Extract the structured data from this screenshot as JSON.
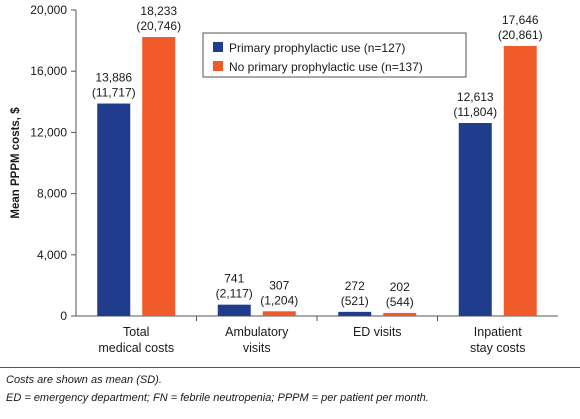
{
  "chart_data": {
    "type": "bar",
    "categories": [
      [
        "Total",
        "medical costs"
      ],
      [
        "Ambulatory",
        "visits"
      ],
      [
        "ED visits"
      ],
      [
        "Inpatient",
        "stay costs"
      ]
    ],
    "series": [
      {
        "name": "Primary prophylactic use (n=127)",
        "color": "#1f3d8c",
        "values": [
          13886,
          741,
          272,
          12613
        ],
        "sd": [
          11717,
          2117,
          521,
          11804
        ],
        "labels": [
          "13,886",
          "741",
          "272",
          "12,613"
        ],
        "sd_labels": [
          "(11,717)",
          "(2,117)",
          "(521)",
          "(11,804)"
        ]
      },
      {
        "name": "No primary prophylactic use (n=137)",
        "color": "#f05a28",
        "values": [
          18233,
          307,
          202,
          17646
        ],
        "sd": [
          20746,
          1204,
          544,
          20861
        ],
        "labels": [
          "18,233",
          "307",
          "202",
          "17,646"
        ],
        "sd_labels": [
          "(20,746)",
          "(1,204)",
          "(544)",
          "(20,861)"
        ]
      }
    ],
    "ylabel": "Mean PPPM costs, $",
    "ylim": [
      0,
      20000
    ],
    "yticks": [
      0,
      4000,
      8000,
      12000,
      16000,
      20000
    ],
    "ytick_labels": [
      "0",
      "4,000",
      "8,000",
      "12,000",
      "16,000",
      "20,000"
    ],
    "legend_position": "top-right",
    "grid": false
  },
  "footnotes": {
    "line1": "Costs are shown as mean (SD).",
    "line2": "ED = emergency department; FN = febrile neutropenia; PPPM = per patient per month."
  }
}
